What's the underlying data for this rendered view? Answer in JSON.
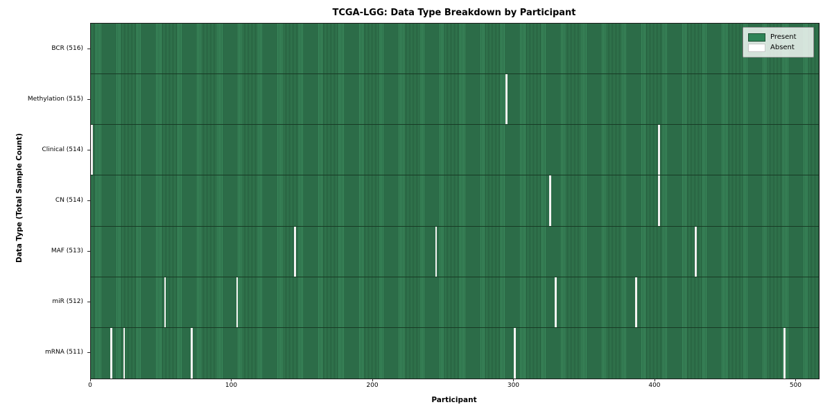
{
  "figure": {
    "title": "TCGA-LGG: Data Type Breakdown by Participant",
    "xlabel": "Participant",
    "ylabel": "Data Type (Total Sample Count)"
  },
  "legend": {
    "present_label": "Present",
    "absent_label": "Absent"
  },
  "colors": {
    "present_fill": "#3b8a5c",
    "present_edge": "#1e4f33",
    "absent": "#f4f4f2",
    "legend_present_swatch": "#2e8457"
  },
  "chart_data": {
    "type": "heatmap",
    "title": "TCGA-LGG: Data Type Breakdown by Participant",
    "xlabel": "Participant",
    "ylabel": "Data Type (Total Sample Count)",
    "n_participants": 516,
    "x_ticks": [
      0,
      100,
      200,
      300,
      400,
      500
    ],
    "x_range": [
      0,
      516
    ],
    "grid": false,
    "legend_entries": [
      "Present",
      "Absent"
    ],
    "legend_position": "upper right",
    "cell_values": {
      "present": 1,
      "absent": 0
    },
    "rows": [
      {
        "label": "BCR (516)",
        "data_type": "BCR",
        "sample_count": 516,
        "absent_participants": []
      },
      {
        "label": "Methylation (515)",
        "data_type": "Methylation",
        "sample_count": 515,
        "absent_participants": [
          294
        ]
      },
      {
        "label": "Clinical (514)",
        "data_type": "Clinical",
        "sample_count": 514,
        "absent_participants": [
          0,
          402
        ]
      },
      {
        "label": "CN (514)",
        "data_type": "CN",
        "sample_count": 514,
        "absent_participants": [
          325,
          402
        ]
      },
      {
        "label": "MAF (513)",
        "data_type": "MAF",
        "sample_count": 513,
        "absent_participants": [
          144,
          244,
          428
        ]
      },
      {
        "label": "miR (512)",
        "data_type": "miR",
        "sample_count": 512,
        "absent_participants": [
          52,
          103,
          329,
          386
        ]
      },
      {
        "label": "mRNA (511)",
        "data_type": "mRNA",
        "sample_count": 511,
        "absent_participants": [
          14,
          23,
          71,
          300,
          491
        ]
      }
    ]
  }
}
